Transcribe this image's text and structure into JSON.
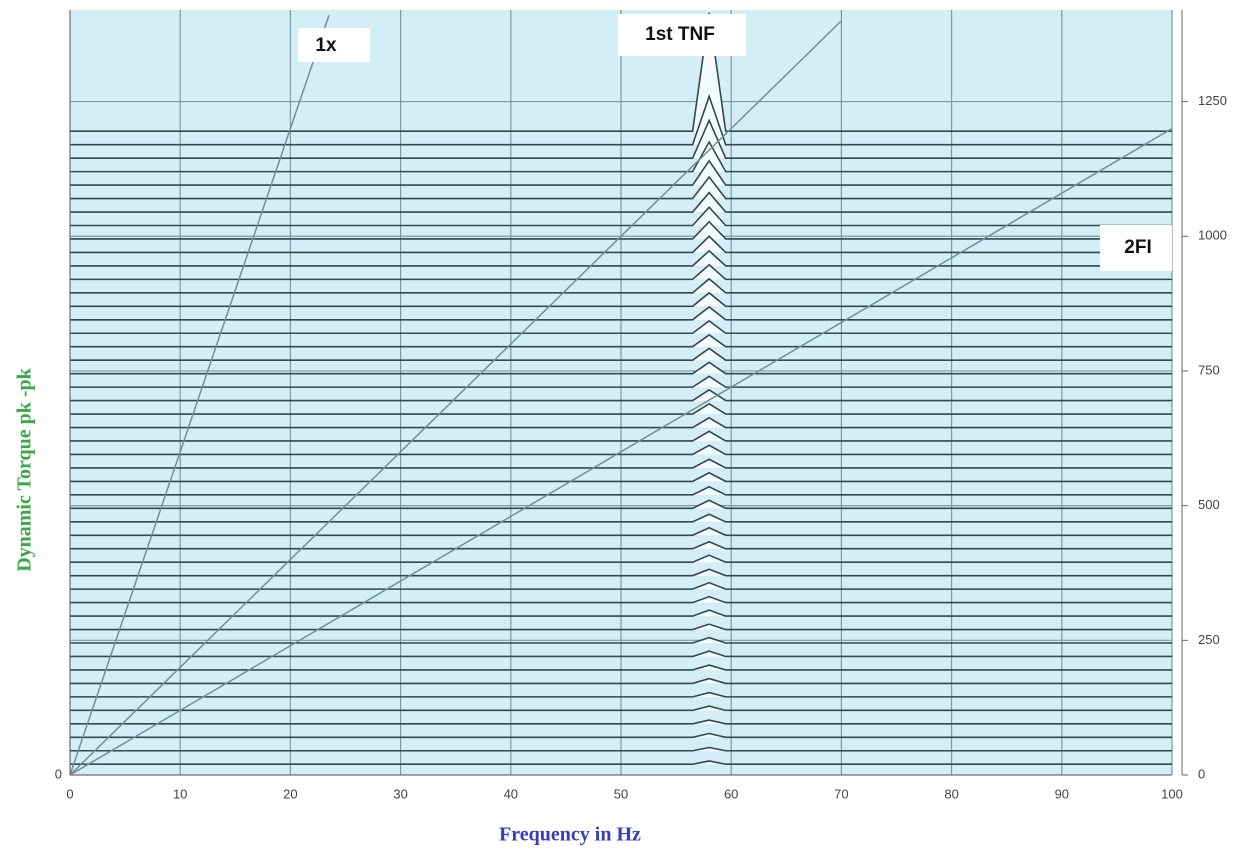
{
  "chart_data": {
    "type": "waterfall",
    "xlabel": "Frequency in Hz",
    "ylabel": "Dynamic Torque pk -pk",
    "xlim": [
      0,
      100
    ],
    "xticks": [
      0,
      10,
      20,
      30,
      40,
      50,
      60,
      70,
      80,
      90,
      100
    ],
    "yticks": [
      0
    ],
    "y2lim": [
      0,
      1420
    ],
    "y2ticks": [
      0,
      250,
      500,
      750,
      1000,
      1250
    ],
    "grid": true,
    "background": "#d4eef7",
    "annotations": [
      "1x",
      "1st TNF",
      "2FI"
    ],
    "series": [
      {
        "x": [
          0,
          23.5
        ],
        "values": [
          0,
          1410
        ],
        "color": "#6f8f98"
      },
      {
        "x": [
          0,
          70
        ],
        "values": [
          0,
          1400
        ],
        "color": "#6f8f98"
      },
      {
        "x": [
          0,
          100
        ],
        "values": [
          0,
          1200
        ],
        "color": "#6f8f98"
      }
    ],
    "traces": {
      "color": "#33474d",
      "tnf_x": 58,
      "levels": [
        20,
        45,
        70,
        95,
        120,
        145,
        170,
        195,
        220,
        245,
        270,
        295,
        320,
        345,
        370,
        395,
        420,
        445,
        470,
        495,
        520,
        545,
        570,
        595,
        620,
        645,
        670,
        695,
        720,
        745,
        770,
        795,
        820,
        845,
        870,
        895,
        920,
        945,
        970,
        995,
        1020,
        1045,
        1070,
        1095,
        1120,
        1145,
        1170,
        1195
      ],
      "peaks": [
        6,
        6,
        7,
        7,
        8,
        8,
        9,
        9,
        10,
        10,
        10,
        11,
        11,
        12,
        12,
        13,
        13,
        14,
        14,
        15,
        15,
        16,
        16,
        17,
        18,
        18,
        19,
        20,
        20,
        21,
        22,
        22,
        23,
        24,
        25,
        26,
        27,
        28,
        30,
        32,
        34,
        36,
        40,
        45,
        55,
        70,
        90,
        220
      ]
    }
  }
}
